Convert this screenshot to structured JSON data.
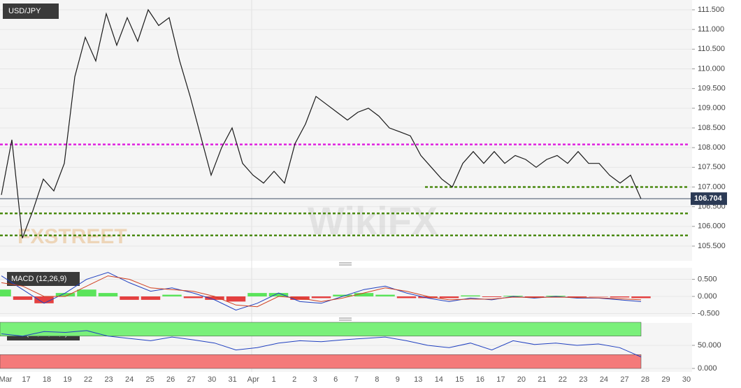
{
  "chart_data": [
    {
      "type": "line",
      "title": "USD/JPY",
      "color": "#1a1a1a",
      "values": [
        106.8,
        108.2,
        105.7,
        106.4,
        107.2,
        106.9,
        107.6,
        109.8,
        110.8,
        110.2,
        111.4,
        110.6,
        111.3,
        110.7,
        111.5,
        111.1,
        111.3,
        110.2,
        109.3,
        108.3,
        107.3,
        108.0,
        108.5,
        107.6,
        107.3,
        107.1,
        107.4,
        107.1,
        108.1,
        108.6,
        109.3,
        109.1,
        108.9,
        108.7,
        108.9,
        109.0,
        108.8,
        108.5,
        108.4,
        108.3,
        107.8,
        107.5,
        107.2,
        107.0,
        107.6,
        107.9,
        107.6,
        107.9,
        107.6,
        107.8,
        107.7,
        107.5,
        107.7,
        107.8,
        107.6,
        107.9,
        107.6,
        107.6,
        107.3,
        107.1,
        107.3,
        106.7
      ],
      "last": {
        "value": 106.704,
        "label": "106.704"
      },
      "levels": [
        {
          "value": 108.08,
          "color": "#e020e0"
        },
        {
          "value": 107.0,
          "color": "#4a8a10"
        },
        {
          "value": 106.33,
          "color": "#4a8a10"
        },
        {
          "value": 105.77,
          "color": "#4a8a10"
        }
      ],
      "ylim": [
        105.25,
        111.75
      ],
      "yticks": [
        {
          "value": 105.5,
          "label": "105.500"
        },
        {
          "value": 106.0,
          "label": "106.000"
        },
        {
          "value": 106.5,
          "label": "106.500"
        },
        {
          "value": 107.0,
          "label": "107.000"
        },
        {
          "value": 107.5,
          "label": "107.500"
        },
        {
          "value": 108.0,
          "label": "108.000"
        },
        {
          "value": 108.5,
          "label": "108.500"
        },
        {
          "value": 109.0,
          "label": "109.000"
        },
        {
          "value": 109.5,
          "label": "109.500"
        },
        {
          "value": 110.0,
          "label": "110.000"
        },
        {
          "value": 110.5,
          "label": "110.500"
        },
        {
          "value": 111.0,
          "label": "111.000"
        },
        {
          "value": 111.5,
          "label": "111.500"
        }
      ],
      "grid": true,
      "xaxis_labels": [
        "Mar",
        "17",
        "18",
        "19",
        "22",
        "23",
        "24",
        "25",
        "26",
        "27",
        "30",
        "31",
        "Apr",
        "1",
        "2",
        "3",
        "6",
        "7",
        "8",
        "9",
        "13",
        "14",
        "15",
        "16",
        "17",
        "20",
        "21",
        "22",
        "23",
        "24",
        "27",
        "28",
        "29",
        "30"
      ],
      "watermarks": [
        "FXSTREET",
        "WikiFX"
      ]
    },
    {
      "type": "macd",
      "title": "MACD (12,26,9)",
      "series": [
        {
          "name": "MACD",
          "color": "#2040c0",
          "values": [
            0.6,
            0.2,
            -0.2,
            0.1,
            0.5,
            0.7,
            0.4,
            0.15,
            0.25,
            0.1,
            -0.1,
            -0.4,
            -0.2,
            0.1,
            -0.15,
            -0.2,
            0.0,
            0.2,
            0.3,
            0.1,
            -0.05,
            -0.15,
            -0.05,
            -0.1,
            0.0,
            -0.05,
            0.0,
            -0.05,
            -0.05,
            -0.1,
            -0.15
          ]
        },
        {
          "name": "Signal",
          "color": "#d04020",
          "values": [
            0.4,
            0.3,
            0.0,
            0.0,
            0.3,
            0.6,
            0.5,
            0.25,
            0.2,
            0.15,
            0.0,
            -0.25,
            -0.3,
            0.0,
            -0.05,
            -0.15,
            -0.05,
            0.1,
            0.25,
            0.15,
            0.0,
            -0.1,
            -0.08,
            -0.08,
            -0.02,
            -0.03,
            -0.02,
            -0.03,
            -0.04,
            -0.07,
            -0.1
          ]
        }
      ],
      "histogram": [
        0.2,
        -0.1,
        -0.2,
        0.1,
        0.2,
        0.1,
        -0.1,
        -0.1,
        0.05,
        -0.05,
        -0.1,
        -0.15,
        0.1,
        0.1,
        -0.1,
        -0.05,
        0.05,
        0.1,
        0.05,
        -0.05,
        -0.05,
        -0.05,
        0.03,
        -0.02,
        0.02,
        -0.02,
        0.02,
        -0.02,
        -0.01,
        -0.03,
        -0.05
      ],
      "histogram_colors": [
        "#40e040",
        "#e02020"
      ],
      "ylim": [
        -0.6,
        0.85
      ],
      "yticks": [
        {
          "value": 0.5,
          "label": "0.500"
        },
        {
          "value": 0,
          "label": "0.000"
        },
        {
          "value": -0.5,
          "label": "-0.500"
        }
      ]
    },
    {
      "type": "rsi",
      "title": "RSI (14,70,30,1)",
      "color": "#2040c0",
      "values": [
        75,
        70,
        80,
        78,
        82,
        70,
        65,
        60,
        68,
        62,
        55,
        40,
        45,
        55,
        60,
        58,
        62,
        65,
        68,
        60,
        50,
        45,
        55,
        40,
        60,
        52,
        55,
        50,
        53,
        45,
        25
      ],
      "bands": [
        {
          "from": 70,
          "to": 100,
          "color": "#7af07a"
        },
        {
          "from": 0,
          "to": 30,
          "color": "#f47a7a"
        }
      ],
      "ylim": [
        0,
        100
      ],
      "yticks": [
        {
          "value": 50,
          "label": "50.000"
        },
        {
          "value": 0,
          "label": "0.000"
        }
      ]
    }
  ]
}
